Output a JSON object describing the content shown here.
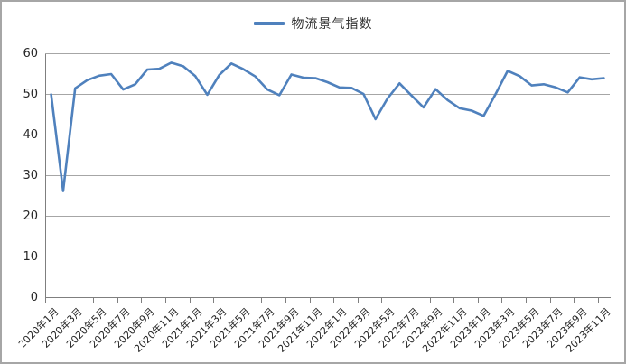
{
  "chart": {
    "legend_label": "物流景气指数",
    "line_color": "#4F81BD",
    "background_color": "#ffffff",
    "gridline_color": "#a6a6a6",
    "axis_color": "#7f7f7f"
  },
  "chart_data": {
    "type": "line",
    "title": "",
    "legend_position": "top",
    "grid": "horizontal",
    "ylim": [
      0,
      60
    ],
    "yticks": [
      0,
      10,
      20,
      30,
      40,
      50,
      60
    ],
    "xtick_interval": 2,
    "x": [
      "2020年1月",
      "2020年2月",
      "2020年3月",
      "2020年4月",
      "2020年5月",
      "2020年6月",
      "2020年7月",
      "2020年8月",
      "2020年9月",
      "2020年10月",
      "2020年11月",
      "2020年12月",
      "2021年1月",
      "2021年2月",
      "2021年3月",
      "2021年4月",
      "2021年5月",
      "2021年6月",
      "2021年7月",
      "2021年8月",
      "2021年9月",
      "2021年10月",
      "2021年11月",
      "2021年12月",
      "2022年1月",
      "2022年2月",
      "2022年3月",
      "2022年4月",
      "2022年5月",
      "2022年6月",
      "2022年7月",
      "2022年8月",
      "2022年9月",
      "2022年10月",
      "2022年11月",
      "2022年12月",
      "2023年1月",
      "2023年2月",
      "2023年3月",
      "2023年4月",
      "2023年5月",
      "2023年6月",
      "2023年7月",
      "2023年8月",
      "2023年9月",
      "2023年10月",
      "2023年11月"
    ],
    "series": [
      {
        "name": "物流景气指数",
        "color": "#4F81BD",
        "values": [
          50.0,
          26.2,
          51.5,
          53.5,
          54.6,
          55.0,
          51.2,
          52.5,
          56.1,
          56.3,
          57.8,
          56.9,
          54.5,
          49.9,
          54.8,
          57.6,
          56.2,
          54.4,
          51.2,
          49.8,
          54.9,
          54.1,
          54.0,
          53.0,
          51.7,
          51.6,
          50.1,
          43.9,
          49.0,
          52.7,
          49.7,
          46.8,
          51.3,
          48.6,
          46.6,
          46.0,
          44.7,
          50.1,
          55.8,
          54.5,
          52.2,
          52.5,
          51.7,
          50.5,
          54.2,
          53.7,
          54.0
        ]
      }
    ]
  }
}
